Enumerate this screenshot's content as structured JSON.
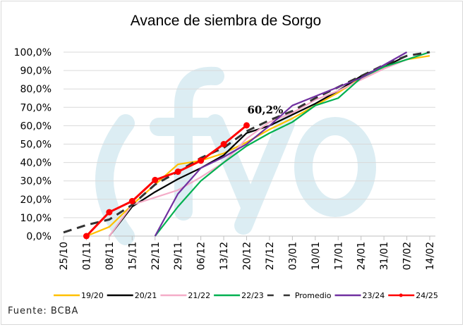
{
  "chart_data": {
    "type": "line",
    "title": "Avance de siembra de Sorgo",
    "source": "Fuente: BCBA",
    "watermark": "fyo",
    "categories": [
      "25/10",
      "01/11",
      "08/11",
      "15/11",
      "22/11",
      "29/11",
      "06/12",
      "13/12",
      "20/12",
      "27/12",
      "03/01",
      "10/01",
      "17/01",
      "24/01",
      "31/01",
      "07/02",
      "14/02"
    ],
    "yticks": [
      "0,0%",
      "10,0%",
      "20,0%",
      "30,0%",
      "40,0%",
      "50,0%",
      "60,0%",
      "70,0%",
      "80,0%",
      "90,0%",
      "100,0%"
    ],
    "ylim": [
      0,
      100
    ],
    "grid": true,
    "legend": "bottom",
    "annotation": "60,2%",
    "series": [
      {
        "name": "19/20",
        "color": "#FFC000",
        "dash": false,
        "markers": false,
        "values": [
          null,
          0,
          5,
          17,
          28,
          39,
          41,
          45,
          51,
          58,
          64,
          71,
          78,
          86,
          92,
          96,
          98
        ]
      },
      {
        "name": "20/21",
        "color": "#000000",
        "dash": false,
        "markers": false,
        "values": [
          null,
          null,
          0,
          16,
          24,
          31,
          37,
          44,
          56,
          60,
          66,
          72,
          79,
          87,
          92,
          98,
          null
        ]
      },
      {
        "name": "21/22",
        "color": "#F4ACC8",
        "dash": false,
        "markers": false,
        "values": [
          null,
          null,
          0,
          17,
          21,
          25,
          32,
          40,
          53,
          62,
          67,
          74,
          79,
          85,
          91,
          96,
          null
        ]
      },
      {
        "name": "22/23",
        "color": "#00B050",
        "dash": false,
        "markers": false,
        "values": [
          null,
          null,
          null,
          null,
          0,
          16,
          30,
          40,
          49,
          56,
          62,
          71,
          75,
          86,
          92,
          96,
          100
        ]
      },
      {
        "name": "Promedio",
        "color": "#333333",
        "dash": true,
        "markers": false,
        "values": [
          2,
          6,
          9,
          17,
          28,
          35,
          42.5,
          48,
          57,
          63,
          68,
          75,
          81,
          87,
          93,
          98,
          100
        ]
      },
      {
        "name": "23/24",
        "color": "#7030A0",
        "dash": false,
        "markers": false,
        "values": [
          null,
          null,
          null,
          null,
          0,
          23,
          37,
          43,
          50,
          60,
          71,
          76,
          81,
          86,
          93,
          100,
          null
        ]
      },
      {
        "name": "24/25",
        "color": "#FF0000",
        "dash": false,
        "markers": true,
        "values": [
          null,
          0,
          13,
          19,
          30.5,
          35,
          41,
          50,
          60.2,
          null,
          null,
          null,
          null,
          null,
          null,
          null,
          null
        ]
      }
    ]
  }
}
